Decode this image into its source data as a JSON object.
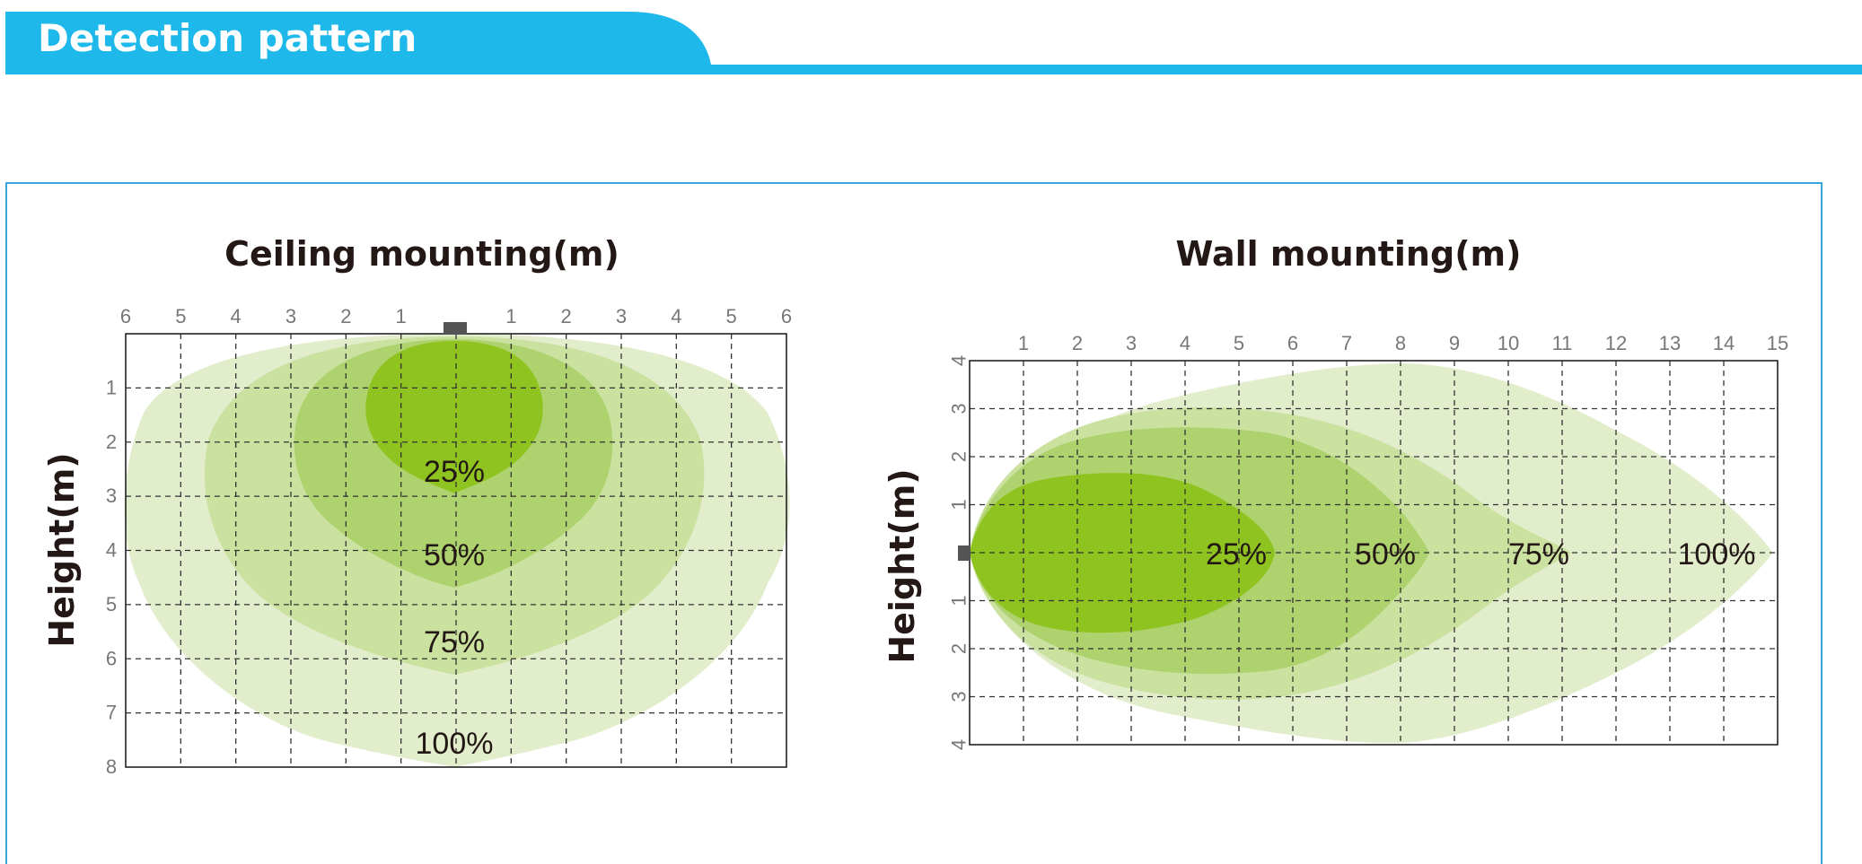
{
  "header": {
    "title": "Detection pattern"
  },
  "colors": {
    "accent": "#1eb8ea",
    "panel_border": "#38a8dc",
    "zone_100": "#e2edcc",
    "zone_75": "#cbe1a0",
    "zone_50": "#aed26d",
    "zone_25": "#8fc31f",
    "sensor": "#555555"
  },
  "ceiling": {
    "title": "Ceiling mounting(m)",
    "ylabel": "Height(m)",
    "x_ticks": [
      "6",
      "5",
      "4",
      "3",
      "2",
      "1",
      "1",
      "2",
      "3",
      "4",
      "5",
      "6"
    ],
    "y_ticks": [
      "1",
      "2",
      "3",
      "4",
      "5",
      "6",
      "7",
      "8"
    ],
    "zones": [
      "25%",
      "50%",
      "75%",
      "100%"
    ]
  },
  "wall": {
    "title": "Wall mounting(m)",
    "ylabel": "Height(m)",
    "x_ticks": [
      "1",
      "2",
      "3",
      "4",
      "5",
      "6",
      "7",
      "8",
      "9",
      "10",
      "11",
      "12",
      "13",
      "14",
      "15"
    ],
    "y_ticks": [
      "4",
      "3",
      "2",
      "1",
      "1",
      "2",
      "3",
      "4"
    ],
    "zones": [
      "25%",
      "50%",
      "75%",
      "100%"
    ]
  }
}
